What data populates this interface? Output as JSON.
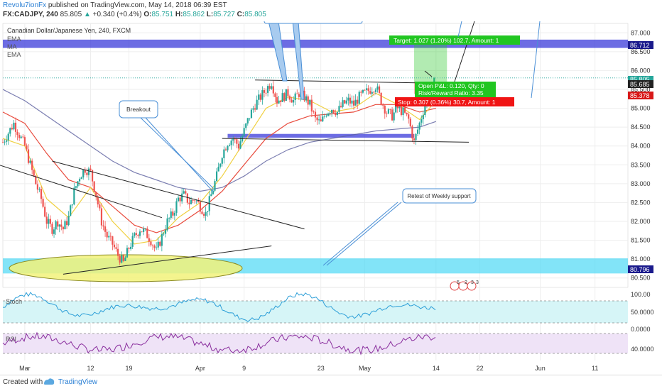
{
  "header": {
    "publisher": "Revolu7ionFx",
    "published_text": " published on TradingView.com, May 14, 2018 06:39 EST",
    "symbol": "FX:CADJPY, 240",
    "last": "85.805",
    "change": "+0.340 (+0.4%)",
    "open_label": "O:",
    "open": "85.751",
    "high_label": "H:",
    "high": "85.862",
    "low_label": "L:",
    "low": "85.727",
    "close_label": "C:",
    "close": "85.805"
  },
  "legend": {
    "instrument": "Canadian Dollar/Japanese Yen, 240, FXCM",
    "indicators": [
      "EMA",
      "MA",
      "EMA"
    ]
  },
  "annotations": {
    "breakout": "Breakout",
    "retest": "Retest of Weekly support",
    "target": "Target: 1.027 (1.20%) 102.7, Amount: 1",
    "open_pl": "Open P&L: 0.120, Qty: 0",
    "risk_reward": "Risk/Reward Ratio: 3.35",
    "stop": "Stop: 0.307 (0.36%) 30.7, Amount: 1",
    "events": [
      "5",
      "2",
      "3",
      "3"
    ]
  },
  "price_tags": {
    "p86712": "86.712",
    "p85685": "85.685",
    "p85378": "85.378",
    "p80796": "80.796",
    "p85805": "85.805"
  },
  "panels": {
    "stoch_label": "Stoch",
    "rsi_label": "RSI",
    "stoch_ticks": [
      "100.00",
      "50.0000",
      "0.0000"
    ],
    "rsi_ticks": [
      "40.0000"
    ]
  },
  "footer": {
    "created": "Created with",
    "brand": "TradingView"
  },
  "colors": {
    "up": "#26a69a",
    "down": "#ef5350",
    "zone_blue": "#3b3bd9",
    "zone_cyan": "#4dd9f5",
    "ellipse": "#f2f27a",
    "ema_red": "#e84a3c",
    "ema_yellow": "#f0d040",
    "ma_navy": "#5a5e9e",
    "target_green": "#21c621",
    "stop_red": "#f01414"
  },
  "chart_data": {
    "type": "candlestick",
    "title": "Canadian Dollar/Japanese Yen, 240, FXCM",
    "y_ticks": [
      87.0,
      86.5,
      86.0,
      85.5,
      85.0,
      84.5,
      84.0,
      83.5,
      83.0,
      82.5,
      82.0,
      81.5,
      81.0,
      80.5
    ],
    "y_tick_labels": [
      "87.000",
      "86.500",
      "86.000",
      "85.500",
      "85.000",
      "84.500",
      "84.000",
      "83.500",
      "83.000",
      "82.500",
      "82.000",
      "81.500",
      "81.000",
      "80.500"
    ],
    "ylim": [
      80.25,
      87.25
    ],
    "x_tick_labels": [
      "Mar",
      "12",
      "19",
      "Apr",
      "9",
      "23",
      "May",
      "14",
      "22",
      "Jun",
      "11"
    ],
    "x_tick_days": [
      0,
      12,
      19,
      32,
      40,
      54,
      62,
      75,
      83,
      94,
      104
    ],
    "xlim": [
      -4,
      110
    ],
    "last_day": 75,
    "close_path": [
      [
        -4,
        84.1
      ],
      [
        -2,
        84.6
      ],
      [
        0,
        84.0
      ],
      [
        1,
        83.5
      ],
      [
        2,
        83.0
      ],
      [
        3,
        82.6
      ],
      [
        4,
        82.0
      ],
      [
        5,
        81.8
      ],
      [
        6,
        82.0
      ],
      [
        7,
        81.8
      ],
      [
        8,
        82.1
      ],
      [
        9,
        82.8
      ],
      [
        10,
        83.2
      ],
      [
        11,
        83.4
      ],
      [
        12,
        83.3
      ],
      [
        13,
        82.7
      ],
      [
        14,
        82.0
      ],
      [
        15,
        81.6
      ],
      [
        16,
        81.4
      ],
      [
        17,
        81.1
      ],
      [
        18,
        80.9
      ],
      [
        19,
        81.3
      ],
      [
        20,
        81.6
      ],
      [
        21,
        81.8
      ],
      [
        22,
        81.7
      ],
      [
        23,
        81.5
      ],
      [
        24,
        81.2
      ],
      [
        25,
        81.6
      ],
      [
        26,
        82.0
      ],
      [
        27,
        82.2
      ],
      [
        28,
        82.6
      ],
      [
        29,
        82.7
      ],
      [
        30,
        82.5
      ],
      [
        31,
        82.6
      ],
      [
        32,
        82.4
      ],
      [
        33,
        82.2
      ],
      [
        34,
        82.7
      ],
      [
        35,
        83.2
      ],
      [
        36,
        83.8
      ],
      [
        37,
        84.1
      ],
      [
        38,
        84.2
      ],
      [
        39,
        84.0
      ],
      [
        40,
        84.4
      ],
      [
        41,
        84.8
      ],
      [
        42,
        85.1
      ],
      [
        43,
        85.3
      ],
      [
        44,
        85.5
      ],
      [
        45,
        85.7
      ],
      [
        46,
        85.2
      ],
      [
        47,
        85.3
      ],
      [
        48,
        85.4
      ],
      [
        49,
        85.2
      ],
      [
        50,
        85.4
      ],
      [
        51,
        85.3
      ],
      [
        52,
        85.1
      ],
      [
        53,
        84.7
      ],
      [
        54,
        84.6
      ],
      [
        55,
        84.9
      ],
      [
        56,
        85.0
      ],
      [
        57,
        84.9
      ],
      [
        58,
        85.1
      ],
      [
        59,
        85.2
      ],
      [
        60,
        85.1
      ],
      [
        61,
        85.3
      ],
      [
        62,
        85.4
      ],
      [
        63,
        85.5
      ],
      [
        64,
        85.6
      ],
      [
        65,
        85.2
      ],
      [
        66,
        84.9
      ],
      [
        67,
        84.8
      ],
      [
        68,
        85.0
      ],
      [
        69,
        84.9
      ],
      [
        70,
        84.7
      ],
      [
        71,
        84.1
      ],
      [
        72,
        84.6
      ],
      [
        73,
        85.1
      ],
      [
        74,
        85.4
      ],
      [
        75,
        85.8
      ]
    ],
    "ema_fast": [
      [
        -4,
        84.2
      ],
      [
        0,
        84.0
      ],
      [
        4,
        82.6
      ],
      [
        8,
        82.1
      ],
      [
        12,
        82.9
      ],
      [
        16,
        82.0
      ],
      [
        20,
        81.4
      ],
      [
        24,
        81.5
      ],
      [
        28,
        82.1
      ],
      [
        32,
        82.5
      ],
      [
        36,
        83.2
      ],
      [
        40,
        84.1
      ],
      [
        44,
        85.0
      ],
      [
        48,
        85.3
      ],
      [
        52,
        85.2
      ],
      [
        56,
        84.9
      ],
      [
        60,
        85.0
      ],
      [
        64,
        85.4
      ],
      [
        68,
        85.1
      ],
      [
        72,
        84.7
      ],
      [
        75,
        85.2
      ]
    ],
    "ema_slow": [
      [
        -4,
        84.9
      ],
      [
        0,
        84.6
      ],
      [
        4,
        83.8
      ],
      [
        8,
        83.1
      ],
      [
        12,
        82.9
      ],
      [
        16,
        82.4
      ],
      [
        20,
        81.9
      ],
      [
        24,
        81.7
      ],
      [
        28,
        81.9
      ],
      [
        32,
        82.3
      ],
      [
        36,
        82.8
      ],
      [
        40,
        83.5
      ],
      [
        44,
        84.2
      ],
      [
        48,
        84.6
      ],
      [
        52,
        84.8
      ],
      [
        56,
        84.85
      ],
      [
        60,
        84.9
      ],
      [
        64,
        85.1
      ],
      [
        68,
        85.1
      ],
      [
        72,
        84.9
      ],
      [
        75,
        85.0
      ]
    ],
    "ma": [
      [
        -4,
        85.5
      ],
      [
        0,
        85.2
      ],
      [
        4,
        84.8
      ],
      [
        8,
        84.4
      ],
      [
        12,
        84.0
      ],
      [
        16,
        83.6
      ],
      [
        20,
        83.3
      ],
      [
        24,
        83.1
      ],
      [
        28,
        82.9
      ],
      [
        32,
        82.8
      ],
      [
        36,
        82.9
      ],
      [
        40,
        83.2
      ],
      [
        44,
        83.6
      ],
      [
        48,
        83.9
      ],
      [
        52,
        84.1
      ],
      [
        56,
        84.2
      ],
      [
        60,
        84.3
      ],
      [
        64,
        84.4
      ],
      [
        68,
        84.45
      ],
      [
        72,
        84.5
      ],
      [
        75,
        84.65
      ]
    ],
    "zones": [
      {
        "name": "blue_upper",
        "y0": 86.6,
        "y1": 86.82
      },
      {
        "name": "blue_mid",
        "y0": 84.22,
        "y1": 84.32
      },
      {
        "name": "cyan_support",
        "y0": 80.62,
        "y1": 81.02
      }
    ],
    "trendlines": [
      {
        "x0": -9,
        "y0": 83.7,
        "x1": 25,
        "y1": 82.1
      },
      {
        "x0": 5,
        "y0": 83.6,
        "x1": 51,
        "y1": 81.8
      },
      {
        "x0": 7,
        "y0": 80.6,
        "x1": 45,
        "y1": 81.35
      },
      {
        "x0": 36,
        "y0": 84.2,
        "x1": 81,
        "y1": 84.1
      },
      {
        "x0": 42,
        "y0": 85.75,
        "x1": 81,
        "y1": 85.65
      }
    ],
    "position": {
      "entry": 85.685,
      "target": 86.712,
      "stop": 85.378,
      "start_day": 71,
      "end_day": 77
    }
  }
}
